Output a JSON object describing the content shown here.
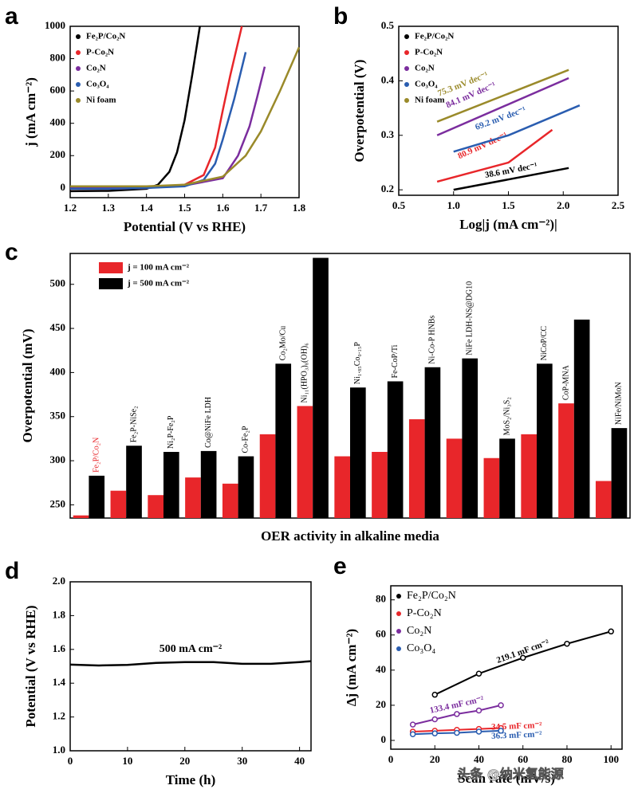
{
  "watermark": "头条 @纳米氢能源",
  "chart_data": [
    {
      "type": "line",
      "panel": "a",
      "xlabel": "Potential (V vs RHE)",
      "ylabel": "j (mA cm⁻²)",
      "xlim": [
        1.2,
        1.8
      ],
      "xticks": [
        1.2,
        1.3,
        1.4,
        1.5,
        1.6,
        1.7,
        1.8
      ],
      "ylim": [
        -60,
        1000
      ],
      "yticks": [
        0,
        200,
        400,
        600,
        800,
        1000
      ],
      "legend": "upper left",
      "series": [
        {
          "name": "Fe₂P/Co₂N",
          "color": "#000000",
          "x": [
            1.2,
            1.3,
            1.4,
            1.43,
            1.46,
            1.48,
            1.5,
            1.52,
            1.54
          ],
          "values": [
            -20,
            -18,
            -5,
            20,
            100,
            220,
            420,
            700,
            1000
          ]
        },
        {
          "name": "P-Co₂N",
          "color": "#e8262a",
          "x": [
            1.2,
            1.3,
            1.4,
            1.5,
            1.55,
            1.58,
            1.6,
            1.62,
            1.65
          ],
          "values": [
            -5,
            -5,
            0,
            20,
            80,
            250,
            480,
            700,
            1000
          ]
        },
        {
          "name": "Co₂N",
          "color": "#7b2d9e",
          "x": [
            1.2,
            1.3,
            1.4,
            1.5,
            1.6,
            1.64,
            1.67,
            1.69,
            1.71
          ],
          "values": [
            5,
            5,
            5,
            15,
            60,
            200,
            380,
            560,
            750
          ]
        },
        {
          "name": "Co₃O₄",
          "color": "#2a5db0",
          "x": [
            1.2,
            1.3,
            1.4,
            1.5,
            1.55,
            1.58,
            1.6,
            1.63,
            1.66
          ],
          "values": [
            -5,
            -5,
            0,
            10,
            50,
            150,
            300,
            550,
            840
          ]
        },
        {
          "name": "Ni foam",
          "color": "#9a8a2a",
          "x": [
            1.2,
            1.3,
            1.4,
            1.5,
            1.6,
            1.66,
            1.7,
            1.75,
            1.8
          ],
          "values": [
            10,
            10,
            10,
            20,
            70,
            200,
            350,
            600,
            870
          ]
        }
      ]
    },
    {
      "type": "line",
      "panel": "b",
      "xlabel": "Log|j (mA cm⁻²)|",
      "ylabel": "Overpotential (V)",
      "xlim": [
        0.5,
        2.5
      ],
      "xticks": [
        0.5,
        {
          "value": 1,
          "label": "1.0"
        },
        1.5,
        {
          "value": 2,
          "label": "2.0"
        },
        2.5
      ],
      "ylim": [
        0.19,
        0.5
      ],
      "yticks": [
        0.2,
        0.3,
        0.4,
        0.5
      ],
      "legend": "upper left",
      "series": [
        {
          "name": "Fe₂P/Co₂N",
          "color": "#000000",
          "x": [
            1.0,
            2.05
          ],
          "values": [
            0.2,
            0.24
          ],
          "annotation": "38.6 mV dec⁻¹"
        },
        {
          "name": "P-Co₂N",
          "color": "#e8262a",
          "x": [
            0.85,
            1.5,
            1.9
          ],
          "values": [
            0.215,
            0.25,
            0.31
          ],
          "annotation": "80.9 mV dec⁻¹"
        },
        {
          "name": "Co₂N",
          "color": "#7b2d9e",
          "x": [
            0.85,
            2.05
          ],
          "values": [
            0.3,
            0.405
          ],
          "annotation": "84.1 mV dec⁻¹"
        },
        {
          "name": "Co₃O₄",
          "color": "#2a5db0",
          "x": [
            1.0,
            1.5,
            2.15
          ],
          "values": [
            0.27,
            0.3,
            0.355
          ],
          "annotation": "69.2 mV dec⁻¹"
        },
        {
          "name": "Ni foam",
          "color": "#9a8a2a",
          "x": [
            0.85,
            2.05
          ],
          "values": [
            0.325,
            0.42
          ],
          "annotation": "75.3 mV dec⁻¹"
        }
      ]
    },
    {
      "type": "bar",
      "panel": "c",
      "xlabel": "OER activity in alkaline media",
      "ylabel": "Overpotential (mV)",
      "ylim": [
        235,
        535
      ],
      "yticks": [
        250,
        300,
        350,
        400,
        450,
        500
      ],
      "legend": "upper left",
      "categories": [
        "Fe₂P/Co₂N",
        "Fe₂P-NiSe₂",
        "Ni₂P-Fe₂P",
        "Co@NiFe LDH",
        "Co-Fe₂P",
        "Co₂Mo/Cu",
        "Ni₁₁(HPO₃)₈(OH)₆",
        "Ni₁.₈₅Co₀.₁₅P",
        "Fe-CoP/Ti",
        "Ni-Co-P HNBs",
        "NiFe LDH-NS@DG10",
        "MoS₂/Ni₃S₂",
        "NiCoP/CC",
        "CoP-MNA",
        "NiFe/NiMoN"
      ],
      "series": [
        {
          "name": "j = 100 mA cm⁻²",
          "color": "#e8262a",
          "values": [
            238,
            266,
            261,
            281,
            274,
            330,
            362,
            305,
            310,
            347,
            325,
            303,
            330,
            365,
            277
          ]
        },
        {
          "name": "j = 500 mA cm⁻²",
          "color": "#000000",
          "values": [
            283,
            317,
            310,
            311,
            305,
            410,
            530,
            383,
            390,
            406,
            416,
            325,
            410,
            460,
            337
          ]
        }
      ]
    },
    {
      "type": "line",
      "panel": "d",
      "xlabel": "Time (h)",
      "ylabel": "Potential (V vs RHE)",
      "annotation": "500 mA cm⁻²",
      "xlim": [
        0,
        42
      ],
      "xticks": [
        0,
        10,
        20,
        30,
        40
      ],
      "ylim": [
        1.0,
        2.0
      ],
      "yticks": [
        {
          "value": 1,
          "label": "1.0"
        },
        1.2,
        1.4,
        1.6,
        1.8,
        {
          "value": 2,
          "label": "2.0"
        }
      ],
      "series": [
        {
          "color": "#000000",
          "x": [
            0,
            5,
            10,
            15,
            20,
            25,
            30,
            35,
            40,
            42
          ],
          "values": [
            1.51,
            1.505,
            1.508,
            1.52,
            1.525,
            1.525,
            1.515,
            1.515,
            1.525,
            1.53
          ]
        }
      ]
    },
    {
      "type": "scatter",
      "panel": "e",
      "xlabel": "Scan rate (mV/s)",
      "ylabel": "Δj (mA cm⁻²)",
      "xlim": [
        0,
        105
      ],
      "xticks": [
        0,
        20,
        40,
        60,
        80,
        100
      ],
      "ylim": [
        -5,
        88
      ],
      "yticks": [
        0,
        20,
        40,
        60,
        80
      ],
      "legend": "upper left",
      "series": [
        {
          "name": "Fe₂P/Co₂N",
          "color": "#000000",
          "x": [
            20,
            40,
            60,
            80,
            100
          ],
          "values": [
            26,
            38,
            47,
            55,
            62
          ],
          "annotation": "219.1 mF cm⁻²"
        },
        {
          "name": "P-Co₂N",
          "color": "#e8262a",
          "x": [
            10,
            20,
            30,
            40,
            50
          ],
          "values": [
            5,
            5.5,
            6,
            6.5,
            7
          ],
          "annotation": "34.5 mF cm⁻²"
        },
        {
          "name": "Co₂N",
          "color": "#7b2d9e",
          "x": [
            10,
            20,
            30,
            40,
            50
          ],
          "values": [
            9,
            12,
            15,
            17,
            20
          ],
          "annotation": "133.4 mF cm⁻²"
        },
        {
          "name": "Co₃O₄",
          "color": "#2a5db0",
          "x": [
            10,
            20,
            30,
            40,
            50
          ],
          "values": [
            3.5,
            4,
            4.3,
            5,
            5.5
          ],
          "annotation": "36.3 mF cm⁻²"
        }
      ]
    }
  ]
}
